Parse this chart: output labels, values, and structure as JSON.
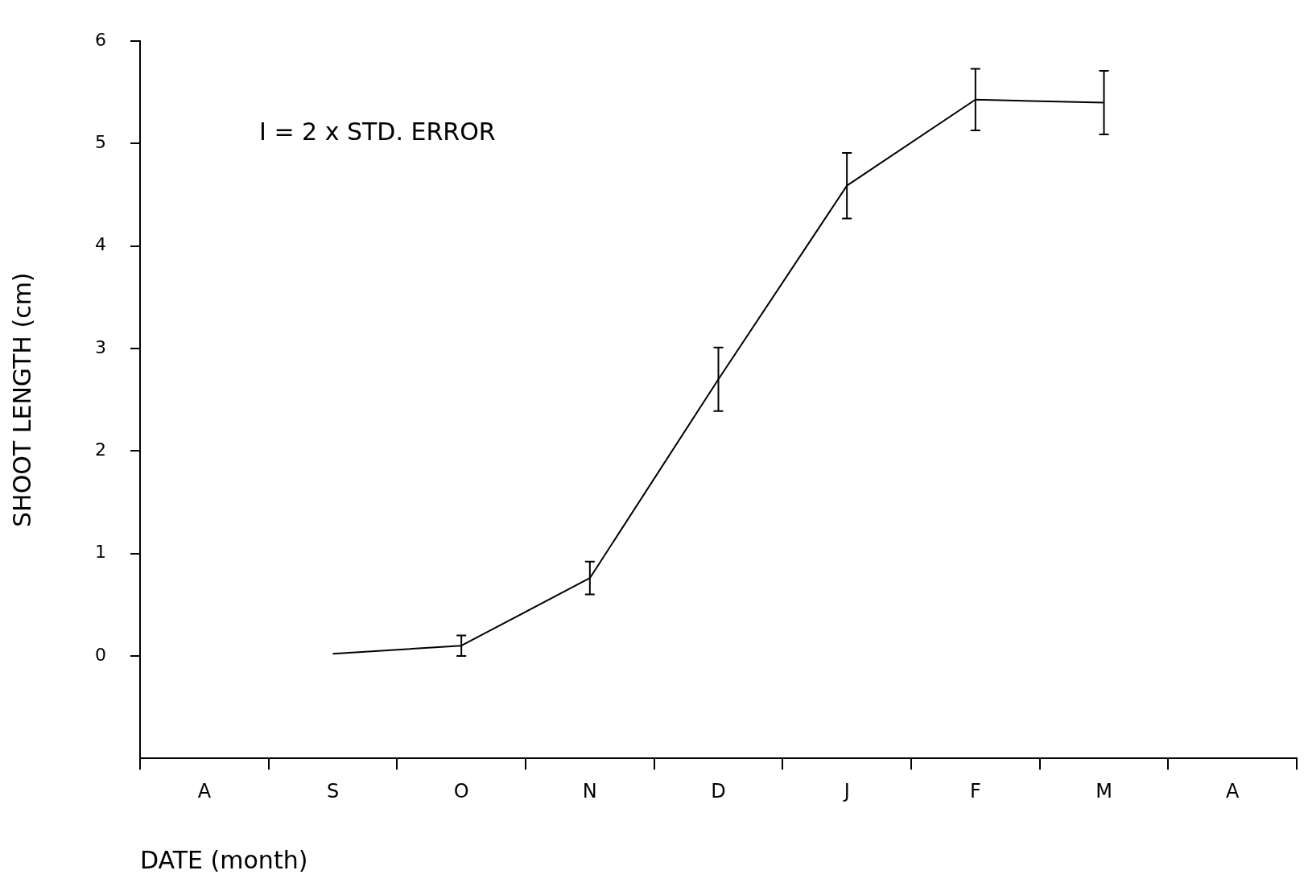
{
  "chart_data": {
    "type": "line",
    "xlabel": "DATE (month)",
    "ylabel": "SHOOT LENGTH (cm)",
    "annotations": [
      "I = 2 x STD. ERROR"
    ],
    "categories": [
      "A",
      "S",
      "O",
      "N",
      "D",
      "J",
      "F",
      "M",
      "A"
    ],
    "ylim": [
      -1,
      6
    ],
    "yticks": [
      0,
      1,
      2,
      3,
      4,
      5,
      6
    ],
    "grid": false,
    "legend": false,
    "marker": "none",
    "line_style": "solid",
    "series": [
      {
        "color": "#000000",
        "values": [
          null,
          0.02,
          0.1,
          0.76,
          2.7,
          4.59,
          5.43,
          5.4,
          null
        ],
        "errors": [
          null,
          null,
          0.1,
          0.16,
          0.31,
          0.32,
          0.3,
          0.31,
          null
        ]
      }
    ]
  }
}
